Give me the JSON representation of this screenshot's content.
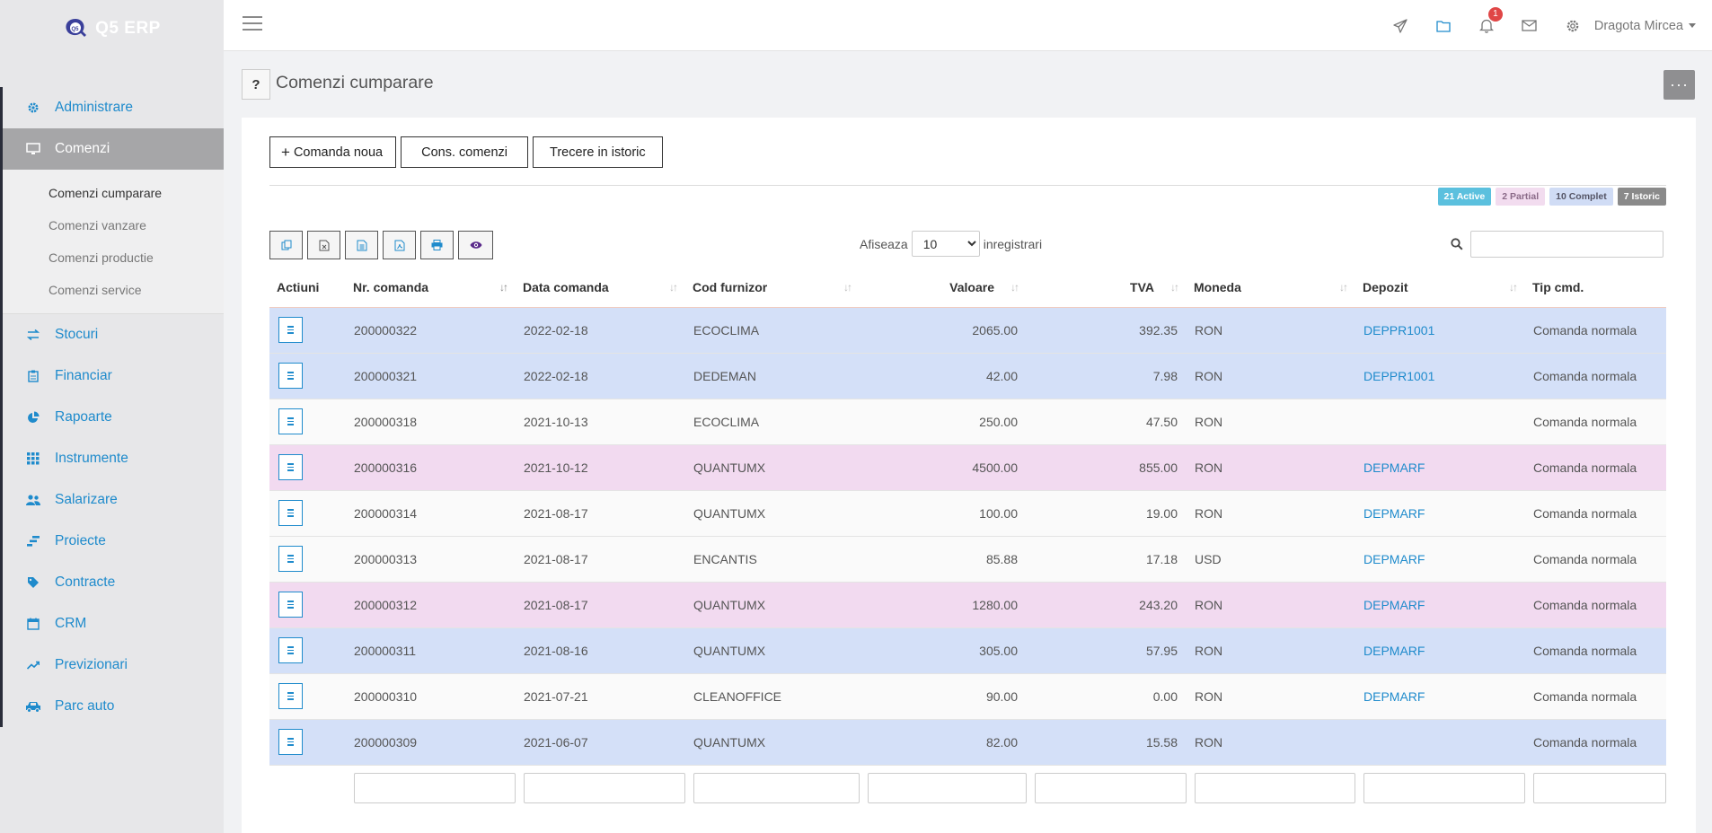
{
  "brand": {
    "name": "Q5 ERP",
    "logo_text": "Q5"
  },
  "sidebar": {
    "items": [
      {
        "label": "Administrare",
        "icon": "gear-icon"
      },
      {
        "label": "Comenzi",
        "icon": "monitor-icon",
        "active": true
      },
      {
        "label": "Stocuri",
        "icon": "exchange-icon"
      },
      {
        "label": "Financiar",
        "icon": "clipboard-icon"
      },
      {
        "label": "Rapoarte",
        "icon": "pie-chart-icon"
      },
      {
        "label": "Instrumente",
        "icon": "grid-icon"
      },
      {
        "label": "Salarizare",
        "icon": "users-icon"
      },
      {
        "label": "Proiecte",
        "icon": "tasks-icon"
      },
      {
        "label": "Contracte",
        "icon": "tag-icon"
      },
      {
        "label": "CRM",
        "icon": "calendar-icon"
      },
      {
        "label": "Previzionari",
        "icon": "trend-icon"
      },
      {
        "label": "Parc auto",
        "icon": "car-icon"
      }
    ],
    "submenu": [
      {
        "label": "Comenzi cumparare",
        "current": true
      },
      {
        "label": "Comenzi vanzare"
      },
      {
        "label": "Comenzi productie"
      },
      {
        "label": "Comenzi service"
      }
    ]
  },
  "topbar": {
    "notification_count": "1",
    "user_name": "Dragota Mircea",
    "icons": [
      "send-icon",
      "folder-icon",
      "bell-icon",
      "mail-icon",
      "settings-icon"
    ]
  },
  "page": {
    "help_label": "?",
    "title": "Comenzi cumparare",
    "more_label": "···"
  },
  "actions": {
    "new_order": "Comanda noua",
    "plus": "+",
    "cons": "Cons. comenzi",
    "history": "Trecere in istoric"
  },
  "status": {
    "active": "21 Active",
    "partial": "2 Partial",
    "complet": "10 Complet",
    "istoric": "7 Istoric"
  },
  "table_controls": {
    "show_label": "Afiseaza",
    "show_value": "10",
    "records_label": "inregistrari"
  },
  "table": {
    "headers": [
      "Actiuni",
      "Nr. comanda",
      "Data comanda",
      "Cod furnizor",
      "Valoare",
      "TVA",
      "Moneda",
      "Depozit",
      "Tip cmd."
    ],
    "rows": [
      {
        "nr": "200000322",
        "data": "2022-02-18",
        "furnizor": "ECOCLIMA",
        "valoare": "2065.00",
        "tva": "392.35",
        "moneda": "RON",
        "depozit": "DEPPR1001",
        "tip": "Comanda normala",
        "style": "blue"
      },
      {
        "nr": "200000321",
        "data": "2022-02-18",
        "furnizor": "DEDEMAN",
        "valoare": "42.00",
        "tva": "7.98",
        "moneda": "RON",
        "depozit": "DEPPR1001",
        "tip": "Comanda normala",
        "style": "blue"
      },
      {
        "nr": "200000318",
        "data": "2021-10-13",
        "furnizor": "ECOCLIMA",
        "valoare": "250.00",
        "tva": "47.50",
        "moneda": "RON",
        "depozit": "",
        "tip": "Comanda normala",
        "style": "white"
      },
      {
        "nr": "200000316",
        "data": "2021-10-12",
        "furnizor": "QUANTUMX",
        "valoare": "4500.00",
        "tva": "855.00",
        "moneda": "RON",
        "depozit": "DEPMARF",
        "tip": "Comanda normala",
        "style": "pink"
      },
      {
        "nr": "200000314",
        "data": "2021-08-17",
        "furnizor": "QUANTUMX",
        "valoare": "100.00",
        "tva": "19.00",
        "moneda": "RON",
        "depozit": "DEPMARF",
        "tip": "Comanda normala",
        "style": "white"
      },
      {
        "nr": "200000313",
        "data": "2021-08-17",
        "furnizor": "ENCANTIS",
        "valoare": "85.88",
        "tva": "17.18",
        "moneda": "USD",
        "depozit": "DEPMARF",
        "tip": "Comanda normala",
        "style": "white"
      },
      {
        "nr": "200000312",
        "data": "2021-08-17",
        "furnizor": "QUANTUMX",
        "valoare": "1280.00",
        "tva": "243.20",
        "moneda": "RON",
        "depozit": "DEPMARF",
        "tip": "Comanda normala",
        "style": "pink"
      },
      {
        "nr": "200000311",
        "data": "2021-08-16",
        "furnizor": "QUANTUMX",
        "valoare": "305.00",
        "tva": "57.95",
        "moneda": "RON",
        "depozit": "DEPMARF",
        "tip": "Comanda normala",
        "style": "blue"
      },
      {
        "nr": "200000310",
        "data": "2021-07-21",
        "furnizor": "CLEANOFFICE",
        "valoare": "90.00",
        "tva": "0.00",
        "moneda": "RON",
        "depozit": "DEPMARF",
        "tip": "Comanda normala",
        "style": "white"
      },
      {
        "nr": "200000309",
        "data": "2021-06-07",
        "furnizor": "QUANTUMX",
        "valoare": "82.00",
        "tva": "15.58",
        "moneda": "RON",
        "depozit": "",
        "tip": "Comanda normala",
        "style": "blue"
      }
    ]
  },
  "colors": {
    "accent": "#1f8bcc",
    "blue_row": "#d4e0f8",
    "pink_row": "#f2daf0",
    "active_badge": "#5bc0de"
  }
}
